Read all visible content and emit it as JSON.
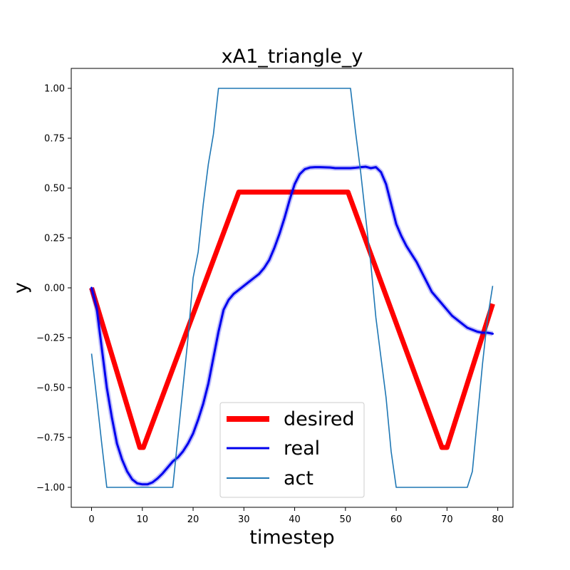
{
  "chart_data": {
    "type": "line",
    "title": "xA1_triangle_y",
    "xlabel": "timestep",
    "ylabel": "y",
    "xlim": [
      -4,
      83
    ],
    "ylim": [
      -1.1,
      1.1
    ],
    "xticks": [
      0,
      10,
      20,
      30,
      40,
      50,
      60,
      70,
      80
    ],
    "yticks": [
      -1.0,
      -0.75,
      -0.5,
      -0.25,
      0.0,
      0.25,
      0.5,
      0.75,
      1.0
    ],
    "ytick_labels": [
      "−1.00",
      "−0.75",
      "−0.50",
      "−0.25",
      "0.00",
      "0.25",
      "0.50",
      "0.75",
      "1.00"
    ],
    "grid": false,
    "legend_position": "lower-center",
    "series": [
      {
        "name": "desired",
        "color": "#ff0000",
        "x": [
          0,
          9.5,
          10.2,
          29,
          50.5,
          69,
          70,
          79
        ],
        "y": [
          0.0,
          -0.8,
          -0.8,
          0.48,
          0.48,
          -0.8,
          -0.8,
          -0.08
        ]
      },
      {
        "name": "real",
        "color": "#0000ee",
        "x": [
          0,
          1,
          2,
          3,
          4,
          5,
          6,
          7,
          8,
          9,
          10,
          11,
          12,
          13,
          14,
          15,
          16,
          17,
          18,
          19,
          20,
          21,
          22,
          23,
          24,
          25,
          26,
          27,
          28,
          29,
          30,
          31,
          32,
          33,
          34,
          35,
          36,
          37,
          38,
          39,
          40,
          41,
          42,
          43,
          44,
          45,
          46,
          47,
          48,
          49,
          50,
          51,
          52,
          53,
          54,
          55,
          56,
          57,
          58,
          59,
          60,
          61,
          62,
          63,
          64,
          65,
          66,
          67,
          68,
          69,
          70,
          71,
          72,
          73,
          74,
          75,
          76,
          77,
          78,
          79
        ],
        "y": [
          0.0,
          -0.1,
          -0.3,
          -0.5,
          -0.65,
          -0.78,
          -0.86,
          -0.92,
          -0.96,
          -0.98,
          -0.985,
          -0.985,
          -0.975,
          -0.955,
          -0.93,
          -0.9,
          -0.87,
          -0.85,
          -0.82,
          -0.78,
          -0.73,
          -0.66,
          -0.58,
          -0.48,
          -0.35,
          -0.22,
          -0.11,
          -0.06,
          -0.03,
          -0.01,
          0.01,
          0.03,
          0.05,
          0.07,
          0.1,
          0.14,
          0.2,
          0.27,
          0.35,
          0.44,
          0.52,
          0.57,
          0.595,
          0.603,
          0.605,
          0.605,
          0.604,
          0.603,
          0.6,
          0.6,
          0.6,
          0.6,
          0.602,
          0.605,
          0.607,
          0.6,
          0.605,
          0.58,
          0.52,
          0.42,
          0.32,
          0.26,
          0.21,
          0.17,
          0.13,
          0.08,
          0.03,
          -0.02,
          -0.05,
          -0.08,
          -0.11,
          -0.14,
          -0.16,
          -0.18,
          -0.2,
          -0.21,
          -0.22,
          -0.225,
          -0.225,
          -0.23
        ]
      },
      {
        "name": "act",
        "color": "#1f77b4",
        "x": [
          0,
          1,
          2,
          3,
          4,
          5,
          6,
          7,
          8,
          9,
          10,
          11,
          12,
          13,
          14,
          15,
          16,
          17,
          18,
          19,
          20,
          21,
          22,
          23,
          24,
          25,
          26,
          27,
          28,
          29,
          30,
          31,
          32,
          33,
          34,
          35,
          36,
          37,
          38,
          39,
          40,
          41,
          42,
          43,
          44,
          45,
          46,
          47,
          48,
          49,
          50,
          51,
          52,
          53,
          54,
          55,
          56,
          57,
          58,
          59,
          60,
          61,
          62,
          63,
          64,
          65,
          66,
          67,
          68,
          69,
          70,
          71,
          72,
          73,
          74,
          75,
          76,
          77,
          78,
          79
        ],
        "y": [
          -0.33,
          -0.55,
          -0.78,
          -1.0,
          -1.0,
          -1.0,
          -1.0,
          -1.0,
          -1.0,
          -1.0,
          -1.0,
          -1.0,
          -1.0,
          -1.0,
          -1.0,
          -1.0,
          -1.0,
          -0.75,
          -0.5,
          -0.25,
          0.05,
          0.18,
          0.42,
          0.62,
          0.77,
          1.0,
          1.0,
          1.0,
          1.0,
          1.0,
          1.0,
          1.0,
          1.0,
          1.0,
          1.0,
          1.0,
          1.0,
          1.0,
          1.0,
          1.0,
          1.0,
          1.0,
          1.0,
          1.0,
          1.0,
          1.0,
          1.0,
          1.0,
          1.0,
          1.0,
          1.0,
          1.0,
          0.78,
          0.58,
          0.35,
          0.12,
          -0.15,
          -0.35,
          -0.55,
          -0.82,
          -1.0,
          -1.0,
          -1.0,
          -1.0,
          -1.0,
          -1.0,
          -1.0,
          -1.0,
          -1.0,
          -1.0,
          -1.0,
          -1.0,
          -1.0,
          -1.0,
          -1.0,
          -0.92,
          -0.65,
          -0.38,
          -0.15,
          0.01
        ]
      }
    ]
  }
}
